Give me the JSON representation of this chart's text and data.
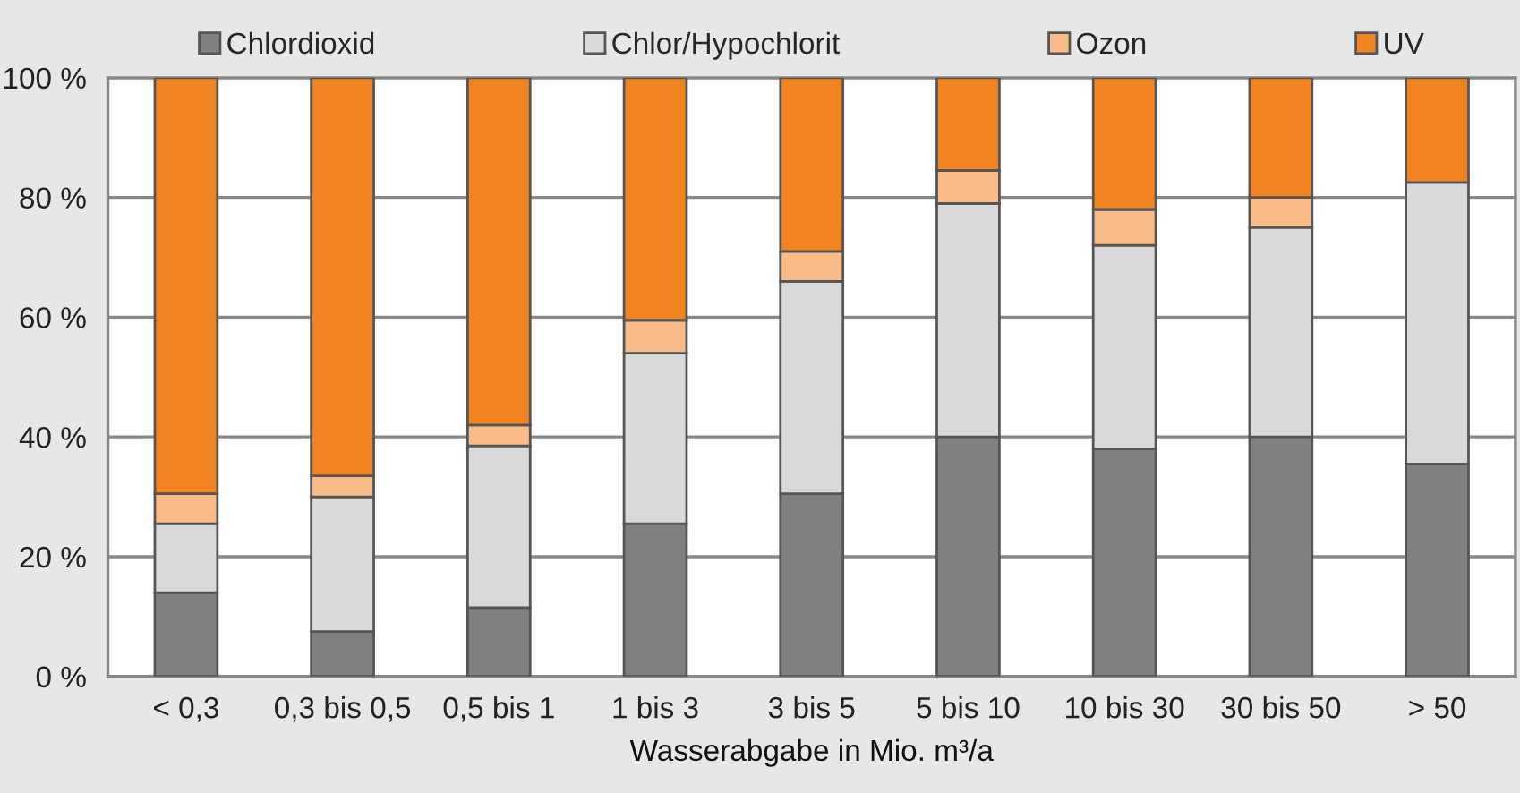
{
  "chart_data": {
    "type": "bar",
    "stacked": true,
    "xlabel": "Wasserabgabe in Mio. m³/a",
    "categories": [
      "< 0,3",
      "0,3 bis 0,5",
      "0,5 bis 1",
      "1 bis 3",
      "3 bis 5",
      "5 bis 10",
      "10 bis 30",
      "30 bis 50",
      "> 50"
    ],
    "series": [
      {
        "name": "Chlordioxid",
        "color": "#808080",
        "values": [
          14,
          7.5,
          11.5,
          25.5,
          30.5,
          40,
          38,
          40,
          35.5
        ]
      },
      {
        "name": "Chlor/Hypochlorit",
        "color": "#d9d9d9",
        "values": [
          11.5,
          22.5,
          27,
          28.5,
          35.5,
          39,
          34,
          35,
          47
        ]
      },
      {
        "name": "Ozon",
        "color": "#f9bb87",
        "values": [
          5,
          3.5,
          3.5,
          5.5,
          5,
          5.5,
          6,
          5,
          null
        ]
      },
      {
        "name": "UV",
        "color": "#f28321",
        "values": [
          69.5,
          66.5,
          58,
          40.5,
          29,
          15.5,
          22,
          20,
          17.5
        ]
      }
    ],
    "ylim": [
      0,
      100
    ],
    "yticks": [
      {
        "value": 0,
        "label": "0 %"
      },
      {
        "value": 20,
        "label": "20 %"
      },
      {
        "value": 40,
        "label": "40 %"
      },
      {
        "value": 60,
        "label": "60 %"
      },
      {
        "value": 80,
        "label": "80 %"
      },
      {
        "value": 100,
        "label": "100 %"
      }
    ],
    "grid": "y",
    "legend": "top"
  }
}
